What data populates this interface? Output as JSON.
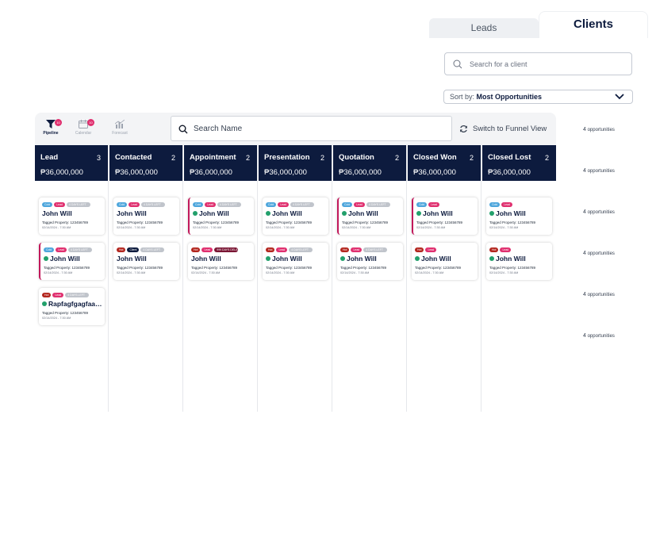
{
  "tabs": [
    {
      "label": "Leads",
      "active": false
    },
    {
      "label": "Clients",
      "active": true
    }
  ],
  "client_search": {
    "placeholder": "Search for a client"
  },
  "sort": {
    "label": "Sort by:",
    "value": "Most Opportunities"
  },
  "views": [
    {
      "label": "Pipeline",
      "icon": "filter-icon",
      "badge": "10",
      "active": true
    },
    {
      "label": "Calendar",
      "icon": "calendar-icon",
      "badge": "10",
      "active": false
    },
    {
      "label": "Forecast",
      "icon": "chart-icon",
      "badge": "",
      "active": false
    }
  ],
  "name_search": {
    "placeholder": "Search Name"
  },
  "funnel_button": {
    "label": "Switch to Funnel View",
    "icon": "refresh-icon"
  },
  "colors": {
    "navy": "#0d1b3e",
    "cold": "#4ea6dc",
    "hot": "#b3261e",
    "lead": "#e0306f",
    "client": "#0d1b3e",
    "days": "#c0c4cb",
    "overdue": "#7a1634",
    "check": "#22a06b",
    "flag": "#c2185b"
  },
  "columns": [
    {
      "title": "Lead",
      "count": "3",
      "amount": "₱36,000,000",
      "cards": [
        {
          "tags": [
            {
              "label": "Cold",
              "type": "cold"
            },
            {
              "label": "Lead",
              "type": "lead"
            },
            {
              "label": "4 DAYS LEFT",
              "type": "days"
            }
          ],
          "name": "John Will",
          "verified": false,
          "flag": false,
          "property": "Tagged Property: 123456789",
          "date": "02/14/2024 - 7:30 AM"
        },
        {
          "tags": [
            {
              "label": "Cold",
              "type": "cold"
            },
            {
              "label": "Lead",
              "type": "lead"
            },
            {
              "label": "4 DAYS LEFT",
              "type": "days"
            }
          ],
          "name": "John Will",
          "verified": true,
          "flag": true,
          "property": "Tagged Property: 123456789",
          "date": "02/14/2024 - 7:30 AM"
        },
        {
          "tags": [
            {
              "label": "Hot",
              "type": "hot"
            },
            {
              "label": "Lead",
              "type": "lead"
            },
            {
              "label": "4 DAYS LEFT",
              "type": "days"
            }
          ],
          "name": "Rapfagfgagfaag...",
          "verified": true,
          "flag": false,
          "property": "Tagged Property: 123456789",
          "date": "02/14/2024 - 7:30 AM"
        }
      ]
    },
    {
      "title": "Contacted",
      "count": "2",
      "amount": "₱36,000,000",
      "cards": [
        {
          "tags": [
            {
              "label": "Cold",
              "type": "cold"
            },
            {
              "label": "Lead",
              "type": "lead"
            },
            {
              "label": "4 DAYS LEFT",
              "type": "days"
            }
          ],
          "name": "John Will",
          "verified": false,
          "flag": false,
          "property": "Tagged Property: 123456789",
          "date": "02/14/2024 - 7:30 AM"
        },
        {
          "tags": [
            {
              "label": "Hot",
              "type": "hot"
            },
            {
              "label": "Client",
              "type": "client"
            },
            {
              "label": "4 DAYS LEFT",
              "type": "days"
            }
          ],
          "name": "John Will",
          "verified": false,
          "flag": false,
          "property": "Tagged Property: 123456789",
          "date": "02/14/2024 - 7:30 AM"
        }
      ]
    },
    {
      "title": "Appointment",
      "count": "2",
      "amount": "₱36,000,000",
      "cards": [
        {
          "tags": [
            {
              "label": "Cold",
              "type": "cold"
            },
            {
              "label": "Lead",
              "type": "lead"
            },
            {
              "label": "4 DAYS LEFT",
              "type": "days"
            }
          ],
          "name": "John Will",
          "verified": true,
          "flag": true,
          "property": "Tagged Property: 123456789",
          "date": "02/14/2024 - 7:30 AM"
        },
        {
          "tags": [
            {
              "label": "Hot",
              "type": "hot"
            },
            {
              "label": "Lead",
              "type": "lead"
            },
            {
              "label": "999 DAYS DELAY",
              "type": "overdue"
            }
          ],
          "name": "John Will",
          "verified": false,
          "flag": false,
          "property": "Tagged Property: 123456789",
          "date": "02/14/2024 - 7:30 AM"
        }
      ]
    },
    {
      "title": "Presentation",
      "count": "2",
      "amount": "₱36,000,000",
      "cards": [
        {
          "tags": [
            {
              "label": "Cold",
              "type": "cold"
            },
            {
              "label": "Lead",
              "type": "lead"
            },
            {
              "label": "4 DAYS LEFT",
              "type": "days"
            }
          ],
          "name": "John Will",
          "verified": true,
          "flag": false,
          "property": "Tagged Property: 123456789",
          "date": "02/14/2024 - 7:30 AM"
        },
        {
          "tags": [
            {
              "label": "Hot",
              "type": "hot"
            },
            {
              "label": "Lead",
              "type": "lead"
            },
            {
              "label": "4 DAYS LEFT",
              "type": "days"
            }
          ],
          "name": "John Will",
          "verified": true,
          "flag": false,
          "property": "Tagged Property: 123456789",
          "date": "02/14/2024 - 7:30 AM"
        }
      ]
    },
    {
      "title": "Quotation",
      "count": "2",
      "amount": "₱36,000,000",
      "cards": [
        {
          "tags": [
            {
              "label": "Cold",
              "type": "cold"
            },
            {
              "label": "Lead",
              "type": "lead"
            },
            {
              "label": "4 DAYS LEFT",
              "type": "days"
            }
          ],
          "name": "John Will",
          "verified": true,
          "flag": true,
          "property": "Tagged Property: 123456789",
          "date": "02/14/2024 - 7:30 AM"
        },
        {
          "tags": [
            {
              "label": "Hot",
              "type": "hot"
            },
            {
              "label": "Lead",
              "type": "lead"
            },
            {
              "label": "4 DAYS LEFT",
              "type": "days"
            }
          ],
          "name": "John Will",
          "verified": true,
          "flag": false,
          "property": "Tagged Property: 123456789",
          "date": "02/14/2024 - 7:30 AM"
        }
      ]
    },
    {
      "title": "Closed Won",
      "count": "2",
      "amount": "₱36,000,000",
      "cards": [
        {
          "tags": [
            {
              "label": "Cold",
              "type": "cold"
            },
            {
              "label": "Lead",
              "type": "lead"
            }
          ],
          "name": "John Will",
          "verified": true,
          "flag": true,
          "property": "Tagged Property: 123456789",
          "date": "02/14/2024 - 7:30 AM"
        },
        {
          "tags": [
            {
              "label": "Hot",
              "type": "hot"
            },
            {
              "label": "Lead",
              "type": "lead"
            }
          ],
          "name": "John Will",
          "verified": true,
          "flag": false,
          "property": "Tagged Property: 123456789",
          "date": "02/14/2024 - 7:30 AM"
        }
      ]
    },
    {
      "title": "Closed Lost",
      "count": "2",
      "amount": "₱36,000,000",
      "cards": [
        {
          "tags": [
            {
              "label": "Cold",
              "type": "cold"
            },
            {
              "label": "Lead",
              "type": "lead"
            }
          ],
          "name": "John Will",
          "verified": true,
          "flag": false,
          "property": "Tagged Property: 123456789",
          "date": "02/14/2024 - 7:30 AM"
        },
        {
          "tags": [
            {
              "label": "Hot",
              "type": "hot"
            },
            {
              "label": "Lead",
              "type": "lead"
            }
          ],
          "name": "John Will",
          "verified": true,
          "flag": false,
          "property": "Tagged Property: 123456789",
          "date": "02/14/2024 - 7:30 AM"
        }
      ]
    }
  ],
  "opportunities": [
    {
      "count": "4",
      "label": "opportunities"
    },
    {
      "count": "4",
      "label": "opportunities"
    },
    {
      "count": "4",
      "label": "opportunities"
    },
    {
      "count": "4",
      "label": "opportunities"
    },
    {
      "count": "4",
      "label": "opportunities"
    },
    {
      "count": "4",
      "label": "opportunities"
    }
  ]
}
